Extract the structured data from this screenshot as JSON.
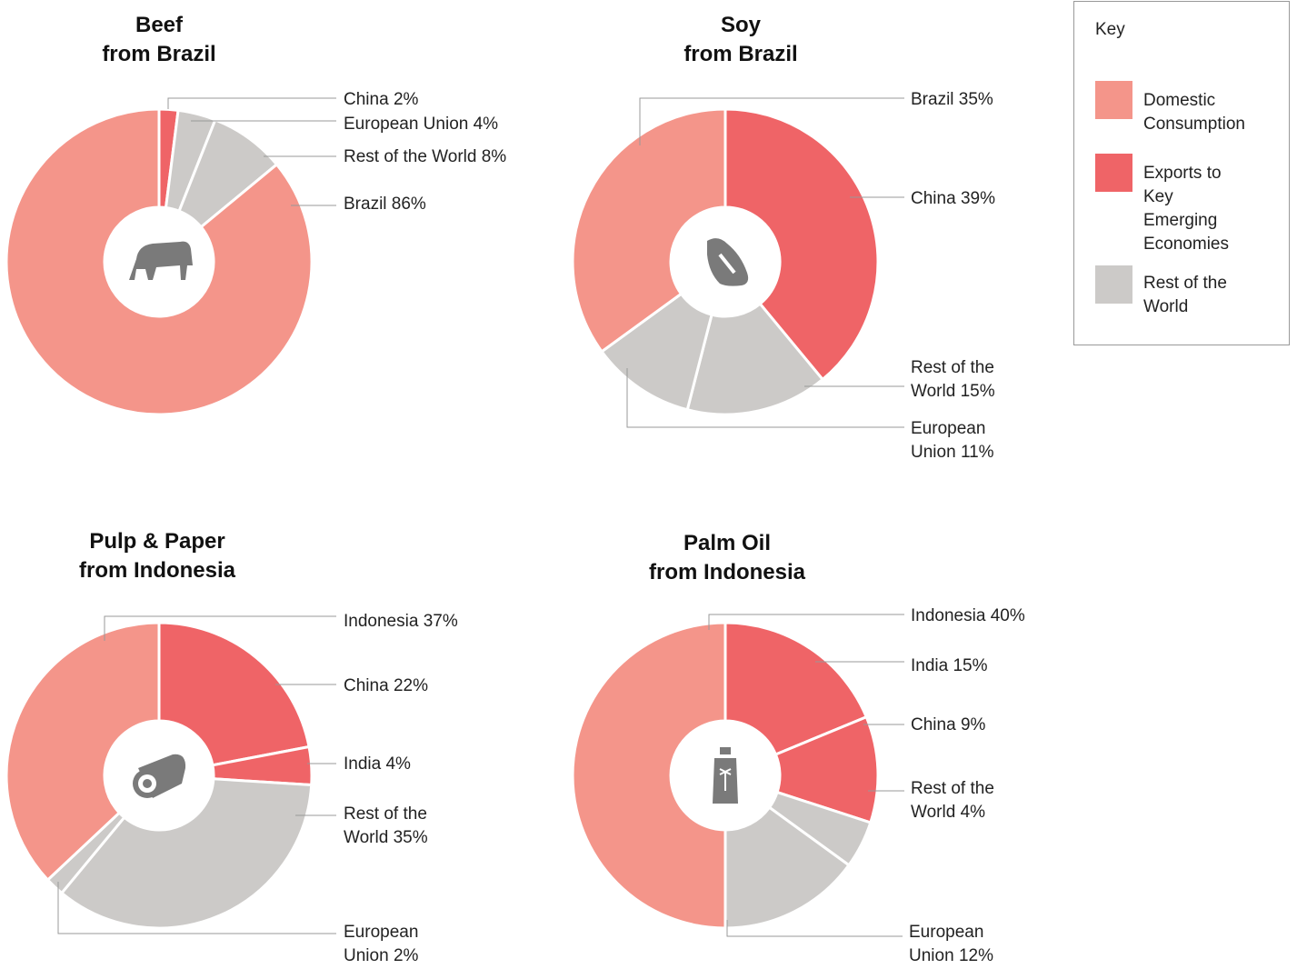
{
  "chart_data": [
    {
      "type": "pie",
      "title": [
        "Beef",
        "from Brazil"
      ],
      "categories": [
        "China",
        "European Union",
        "Rest of the World",
        "Brazil"
      ],
      "values": [
        2,
        4,
        8,
        86
      ],
      "value_labels": [
        "2%",
        "4%",
        "8%",
        "86%"
      ],
      "colors": [
        "#ef6467",
        "#cccac8",
        "#cccac8",
        "#f4958a"
      ]
    },
    {
      "type": "pie",
      "title": [
        "Soy",
        "from Brazil"
      ],
      "categories": [
        "China",
        "Rest of the World",
        "European Union",
        "Brazil"
      ],
      "values": [
        39,
        15,
        11,
        35
      ],
      "value_labels": [
        "39%",
        "15%",
        "11%",
        "35%"
      ],
      "colors": [
        "#ef6467",
        "#cccac8",
        "#cccac8",
        "#f4958a"
      ]
    },
    {
      "type": "pie",
      "title": [
        "Pulp & Paper",
        "from Indonesia"
      ],
      "categories": [
        "China",
        "India",
        "Rest of the World",
        "European Union",
        "Indonesia"
      ],
      "values": [
        22,
        4,
        35,
        2,
        37
      ],
      "value_labels": [
        "22%",
        "4%",
        "35%",
        "2%",
        "37%"
      ],
      "colors": [
        "#ef6467",
        "#ef6467",
        "#cccac8",
        "#cccac8",
        "#f4958a"
      ]
    },
    {
      "type": "pie",
      "title": [
        "Palm Oil",
        "from Indonesia"
      ],
      "categories": [
        "India",
        "China",
        "Rest of the World",
        "European Union",
        "Indonesia"
      ],
      "values": [
        15,
        9,
        4,
        12,
        40
      ],
      "value_labels": [
        "15%",
        "9%",
        "4%",
        "12%",
        "40%"
      ],
      "colors": [
        "#ef6467",
        "#ef6467",
        "#cccac8",
        "#cccac8",
        "#f4958a"
      ]
    }
  ],
  "key": {
    "title": "Key",
    "items": [
      {
        "name": "Domestic Consumption",
        "color": "#f4958a"
      },
      {
        "name": "Exports to Key Emerging Economies",
        "color": "#ef6467"
      },
      {
        "name": "Rest of the World",
        "color": "#cccac8"
      }
    ]
  }
}
